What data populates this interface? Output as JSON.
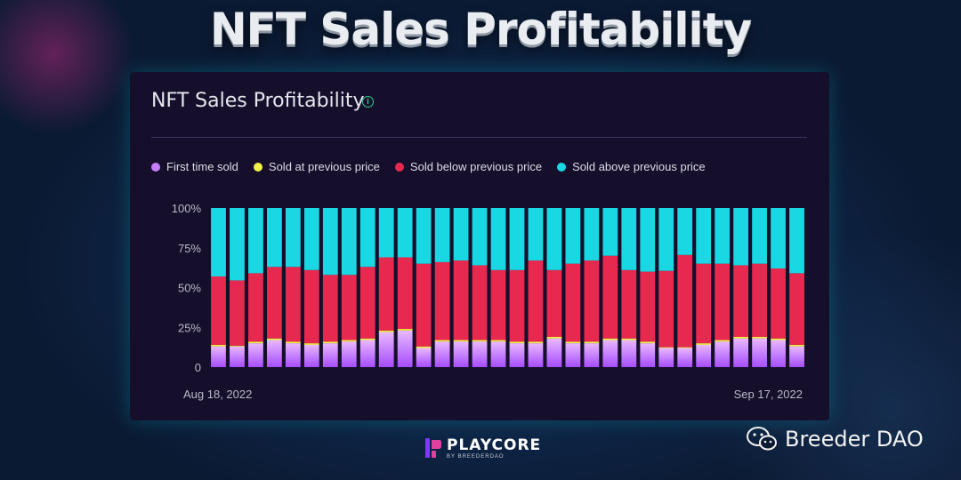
{
  "hero_title": "NFT Sales Profitability",
  "card": {
    "title": "NFT Sales Profitability",
    "info_icon": "info-icon"
  },
  "legend": [
    {
      "label": "First time sold",
      "color": "#c77dff"
    },
    {
      "label": "Sold at previous price",
      "color": "#f4f04a"
    },
    {
      "label": "Sold below previous price",
      "color": "#e8294f"
    },
    {
      "label": "Sold above previous price",
      "color": "#19d8e3"
    }
  ],
  "brand": {
    "name": "PLAYCORE",
    "sub": "BY BREEDERDAO",
    "icon": "playcore-logo-icon"
  },
  "watermark": {
    "text": "Breeder DAO",
    "icon": "wechat-icon"
  },
  "chart_data": {
    "type": "bar",
    "stacked": true,
    "percent": true,
    "x_start_label": "Aug 18, 2022",
    "x_end_label": "Sep 17, 2022",
    "yticks": [
      "100%",
      "75%",
      "50%",
      "25%",
      "0"
    ],
    "ylim": [
      0,
      100
    ],
    "grid": false,
    "legend_position": "top-left",
    "series": [
      {
        "name": "First time sold",
        "color": "#c77dff",
        "values": [
          13,
          13,
          15,
          17,
          15,
          14,
          15,
          16,
          17,
          22,
          23,
          12,
          16,
          16,
          16,
          16,
          15,
          15,
          18,
          15,
          15,
          17,
          17,
          15,
          12,
          12,
          14,
          16,
          18,
          18,
          17,
          13
        ]
      },
      {
        "name": "Sold at previous price",
        "color": "#f4f04a",
        "values": [
          1,
          0.5,
          1,
          1,
          1,
          1,
          1,
          1,
          1,
          1,
          1,
          1,
          1,
          1,
          1,
          1,
          1,
          1,
          1,
          1,
          1,
          1,
          1,
          1,
          0.5,
          0.5,
          1,
          1,
          1,
          1,
          1,
          1
        ]
      },
      {
        "name": "Sold below previous price",
        "color": "#e8294f",
        "values": [
          43,
          41,
          43,
          45,
          47,
          46,
          42,
          41,
          45,
          46,
          45,
          52,
          49,
          50,
          47,
          44,
          45,
          51,
          42,
          49,
          51,
          52,
          43,
          44,
          48,
          58,
          50,
          48,
          45,
          46,
          44,
          45
        ]
      },
      {
        "name": "Sold above previous price",
        "color": "#19d8e3",
        "values": [
          43,
          45.5,
          41,
          37,
          37,
          39,
          42,
          42,
          37,
          31,
          31,
          35,
          34,
          33,
          36,
          39,
          39,
          33,
          39,
          35,
          33,
          30,
          39,
          40,
          39.5,
          29.5,
          35,
          35,
          36,
          35,
          38,
          41
        ]
      }
    ]
  }
}
